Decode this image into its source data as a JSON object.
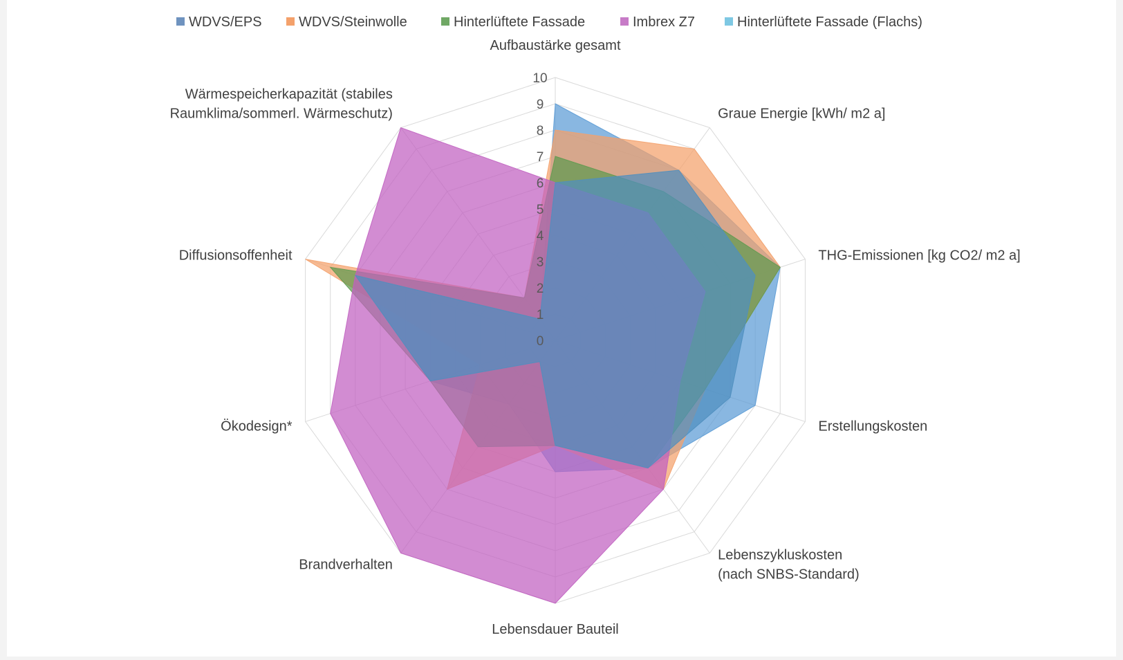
{
  "chart_data": {
    "type": "radar",
    "axes": [
      "Aufbaustärke gesamt",
      "Graue Energie [kWh/ m2 a]",
      "THG-Emissionen  [kg CO2/ m2 a]",
      "Erstellungskosten",
      "Lebenszykluskosten (nach SNBS-Standard)",
      "Lebensdauer Bauteil",
      "Brandverhalten",
      "Ökodesign*",
      "Diffusionsoffenheit",
      "Wärmespeicherkapazität (stabiles Raumklima/sommerl. Wärmeschutz)"
    ],
    "axis_label_lines": [
      [
        "Aufbaustärke gesamt"
      ],
      [
        "Graue Energie [kWh/ m2 a]"
      ],
      [
        "THG-Emissionen  [kg CO2/ m2 a]"
      ],
      [
        "Erstellungskosten"
      ],
      [
        "Lebenszykluskosten",
        "(nach SNBS-Standard)"
      ],
      [
        "Lebensdauer Bauteil"
      ],
      [
        "Brandverhalten"
      ],
      [
        "Ökodesign*"
      ],
      [
        "Diffusionsoffenheit"
      ],
      [
        "Wärmespeicherkapazität (stabiles",
        "Raumklima/sommerl. Wärmeschutz)"
      ]
    ],
    "r_ticks": [
      "0",
      "1",
      "2",
      "3",
      "4",
      "5",
      "6",
      "7",
      "8",
      "9",
      "10"
    ],
    "rlim": [
      0,
      10
    ],
    "grid": true,
    "legend_position": "top",
    "series": [
      {
        "name": "WDVS/EPS",
        "color": "#5b9bd5",
        "legend_color": "#6f93bf",
        "values": [
          9,
          8,
          9,
          8,
          6,
          5,
          3,
          5,
          8,
          1
        ]
      },
      {
        "name": "WDVS/Steinwolle",
        "color": "#f4a16b",
        "legend_color": "#f4a16b",
        "values": [
          8,
          9,
          9,
          6,
          7,
          4,
          7,
          3,
          10,
          2
        ]
      },
      {
        "name": "Hinterlüftete Fassade",
        "color": "#5e9a4f",
        "legend_color": "#70a865",
        "values": [
          7,
          7,
          9,
          6,
          6,
          4,
          5,
          5,
          9,
          2
        ]
      },
      {
        "name": "Imbrex Z7",
        "color": "#c060c0",
        "legend_color": "#c77bc7",
        "values": [
          6,
          6,
          6,
          5,
          7,
          10,
          10,
          9,
          8,
          10
        ]
      },
      {
        "name": "Hinterlüftete Fassade (Flachs)",
        "color": "#4f8fbf",
        "legend_color": "#7ec8e3",
        "values": [
          6,
          8,
          8,
          7,
          6,
          4,
          1,
          5,
          8,
          1
        ]
      }
    ]
  }
}
